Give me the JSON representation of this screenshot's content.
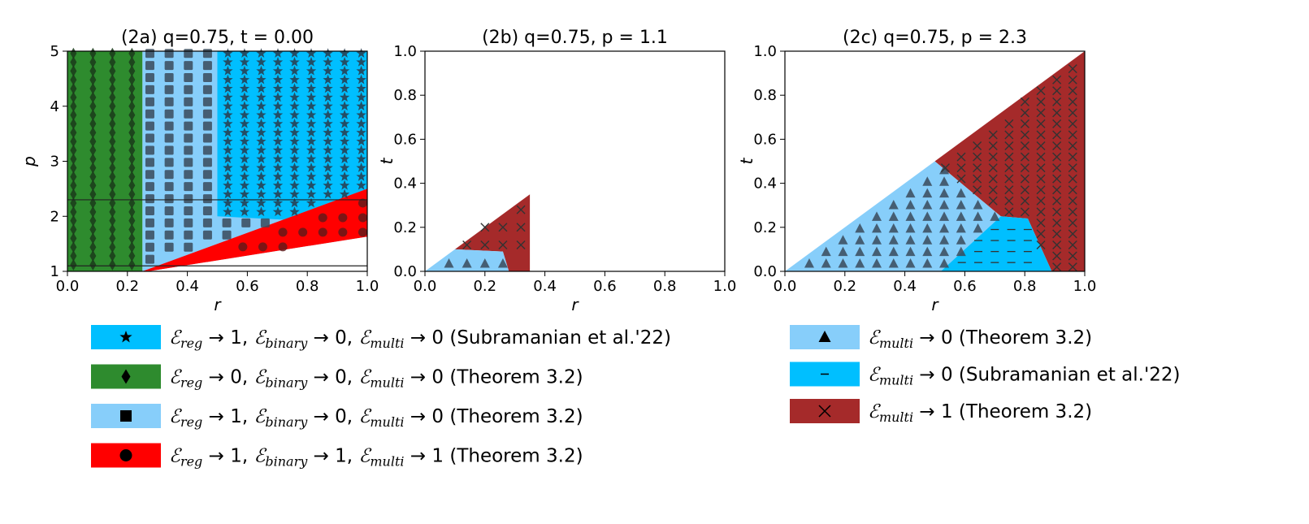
{
  "colors": {
    "sky": "#00bfff",
    "green": "#2e8b2e",
    "lightsky": "#87cefa",
    "red": "#ff0000",
    "brown": "#a52a2a",
    "marker": "#3a4a5a"
  },
  "chart_data": [
    {
      "type": "region-map",
      "title": "(2a) q=0.75, t = 0.00",
      "xlabel": "r",
      "ylabel": "p",
      "xlim": [
        0,
        1
      ],
      "ylim": [
        1,
        5
      ],
      "xticks": [
        "0.0",
        "0.2",
        "0.4",
        "0.6",
        "0.8",
        "1.0"
      ],
      "yticks": [
        "1",
        "2",
        "3",
        "4",
        "5"
      ],
      "reference_lines_p": [
        1.1,
        2.3
      ],
      "regions": [
        {
          "class": "green-diamond",
          "r_range": [
            0,
            0.25
          ],
          "p_range": [
            1,
            5
          ]
        },
        {
          "class": "lightsky-square",
          "r_range": [
            0.25,
            1.0
          ],
          "p_range": [
            1,
            5
          ],
          "below_red_boundary": true
        },
        {
          "class": "sky-star",
          "r_range": [
            0.5,
            1.0
          ],
          "p_range": [
            2.0,
            5
          ],
          "above_red_boundary": true
        },
        {
          "class": "red-circle",
          "boundary": "p = 1 + 1.5*(r - 0.25)/0.75 ... upper edge from (0.25,1.0) to (1.0,2.5)",
          "r_range": [
            0.25,
            1.0
          ]
        }
      ]
    },
    {
      "type": "region-map",
      "title": "(2b) q=0.75, p = 1.1",
      "xlabel": "r",
      "ylabel": "t",
      "xlim": [
        0,
        1
      ],
      "ylim": [
        0,
        1
      ],
      "xticks": [
        "0.0",
        "0.2",
        "0.4",
        "0.6",
        "0.8",
        "1.0"
      ],
      "yticks": [
        "0.0",
        "0.2",
        "0.4",
        "0.6",
        "0.8",
        "1.0"
      ],
      "regions": [
        {
          "class": "lightsky-triangle",
          "polygon": [
            [
              0,
              0
            ],
            [
              0.28,
              0
            ],
            [
              0.26,
              0.09
            ],
            [
              0.1,
              0.1
            ]
          ]
        },
        {
          "class": "brown-x",
          "polygon": [
            [
              0.28,
              0
            ],
            [
              0.35,
              0
            ],
            [
              0.35,
              0.35
            ],
            [
              0.1,
              0.1
            ],
            [
              0.26,
              0.09
            ]
          ]
        }
      ]
    },
    {
      "type": "region-map",
      "title": "(2c) q=0.75, p = 2.3",
      "xlabel": "r",
      "ylabel": "t",
      "xlim": [
        0,
        1
      ],
      "ylim": [
        0,
        1
      ],
      "xticks": [
        "0.0",
        "0.2",
        "0.4",
        "0.6",
        "0.8",
        "1.0"
      ],
      "yticks": [
        "0.0",
        "0.2",
        "0.4",
        "0.6",
        "0.8",
        "1.0"
      ],
      "regions": [
        {
          "class": "lightsky-triangle",
          "polygon": [
            [
              0,
              0
            ],
            [
              0.52,
              0
            ],
            [
              0.72,
              0.25
            ],
            [
              0.5,
              0.5
            ]
          ]
        },
        {
          "class": "sky-dash",
          "polygon": [
            [
              0.52,
              0
            ],
            [
              0.89,
              0
            ],
            [
              0.81,
              0.24
            ],
            [
              0.72,
              0.25
            ]
          ]
        },
        {
          "class": "brown-x",
          "polygon": [
            [
              0.5,
              0.5
            ],
            [
              1,
              1
            ],
            [
              1,
              0
            ],
            [
              0.89,
              0
            ],
            [
              0.81,
              0.24
            ],
            [
              0.72,
              0.25
            ]
          ]
        }
      ]
    }
  ],
  "legend_left": [
    {
      "color": "#00bfff",
      "marker": "star",
      "parts": [
        "reg",
        "binary",
        "multi"
      ],
      "values": [
        "1",
        "0",
        "0"
      ],
      "source": "(Subramanian et al.'22)"
    },
    {
      "color": "#2e8b2e",
      "marker": "diamond",
      "parts": [
        "reg",
        "binary",
        "multi"
      ],
      "values": [
        "0",
        "0",
        "0"
      ],
      "source": "(Theorem 3.2)"
    },
    {
      "color": "#87cefa",
      "marker": "square",
      "parts": [
        "reg",
        "binary",
        "multi"
      ],
      "values": [
        "1",
        "0",
        "0"
      ],
      "source": "(Theorem 3.2)"
    },
    {
      "color": "#ff0000",
      "marker": "circle",
      "parts": [
        "reg",
        "binary",
        "multi"
      ],
      "values": [
        "1",
        "1",
        "1"
      ],
      "source": "(Theorem 3.2)"
    }
  ],
  "legend_right": [
    {
      "color": "#87cefa",
      "marker": "triangle",
      "parts": [
        "multi"
      ],
      "values": [
        "0"
      ],
      "source": "(Theorem 3.2)"
    },
    {
      "color": "#00bfff",
      "marker": "dash",
      "parts": [
        "multi"
      ],
      "values": [
        "0"
      ],
      "source": "(Subramanian et al.'22)"
    },
    {
      "color": "#a52a2a",
      "marker": "x",
      "parts": [
        "multi"
      ],
      "values": [
        "1"
      ],
      "source": "(Theorem 3.2)"
    }
  ],
  "symbols": {
    "E": "ℰ",
    "arrow": "→"
  }
}
